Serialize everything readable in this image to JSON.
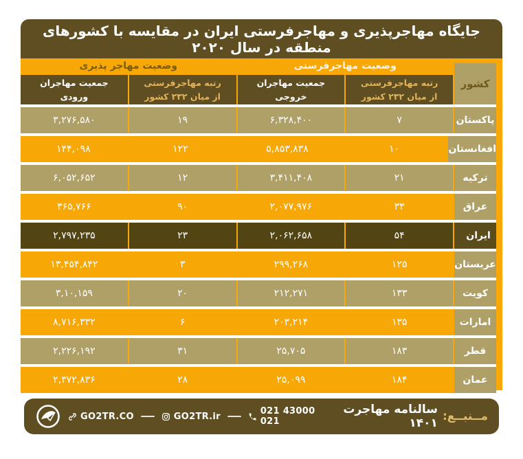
{
  "title": "جایگاه مهاجرپذیری و مهاجرفرستی ایران در مقایسه با کشورهای منطقه در سال ۲۰۲۰",
  "colors": {
    "orange": "#F7A807",
    "tan": "#AFA067",
    "dark_brown": "#5E4E22",
    "iran_row": "#524413",
    "gold_text": "#E3B45B",
    "footer_label_gold": "#DDB96E",
    "white": "#FFFFFF"
  },
  "table": {
    "country_header": "کشور",
    "groups": [
      {
        "label": "وضعیت مهاجرفرستی",
        "style": "light"
      },
      {
        "label": "وضعیت مهاجر پذیری",
        "style": "dark"
      }
    ],
    "columns": [
      {
        "label": "رتبه مهاجرفرستی\nاز میان ۲۳۲ کشور",
        "style": "gold"
      },
      {
        "label": "جمعیت مهاجران\nخروجی",
        "style": "white"
      },
      {
        "label": "رتبه مهاجرفرستی\nاز میان ۲۳۲ کشور",
        "style": "gold"
      },
      {
        "label": "جمعیت مهاجران\nورودی",
        "style": "white"
      }
    ],
    "rows": [
      {
        "country": "پاکستان",
        "emigration_rank": "۷",
        "emigrants": "۶,۳۲۸,۴۰۰",
        "immigration_rank": "۱۹",
        "immigrants": "۳,۲۷۶,۵۸۰",
        "style": "tan"
      },
      {
        "country": "افغانستان",
        "emigration_rank": "۱۰",
        "emigrants": "۵,۸۵۳,۸۳۸",
        "immigration_rank": "۱۲۲",
        "immigrants": "۱۴۴,۰۹۸",
        "style": "orange"
      },
      {
        "country": "ترکیه",
        "emigration_rank": "۲۱",
        "emigrants": "۳,۴۱۱,۴۰۸",
        "immigration_rank": "۱۲",
        "immigrants": "۶,۰۵۲,۶۵۲",
        "style": "tan"
      },
      {
        "country": "عراق",
        "emigration_rank": "۳۳",
        "emigrants": "۲,۰۷۷,۹۷۶",
        "immigration_rank": "۹۰",
        "immigrants": "۳۶۵,۷۶۶",
        "style": "orange"
      },
      {
        "country": "ایران",
        "emigration_rank": "۵۴",
        "emigrants": "۲,۰۶۲,۶۵۸",
        "immigration_rank": "۲۳",
        "immigrants": "۲,۷۹۷,۲۳۵",
        "style": "dark"
      },
      {
        "country": "عربستان",
        "emigration_rank": "۱۲۵",
        "emigrants": "۲۹۹,۲۶۸",
        "immigration_rank": "۳",
        "immigrants": "۱۳,۴۵۴,۸۴۲",
        "style": "orange"
      },
      {
        "country": "کویت",
        "emigration_rank": "۱۳۳",
        "emigrants": "۲۱۲,۲۷۱",
        "immigration_rank": "۲۰",
        "immigrants": "۳,۱۰,۱۵۹",
        "style": "tan"
      },
      {
        "country": "امارات",
        "emigration_rank": "۱۳۵",
        "emigrants": "۲۰۳,۲۱۴",
        "immigration_rank": "۶",
        "immigrants": "۸,۷۱۶,۳۳۲",
        "style": "orange"
      },
      {
        "country": "قطر",
        "emigration_rank": "۱۸۳",
        "emigrants": "۲۵,۷۰۵",
        "immigration_rank": "۳۱",
        "immigrants": "۲,۲۲۶,۱۹۲",
        "style": "tan"
      },
      {
        "country": "عمان",
        "emigration_rank": "۱۸۴",
        "emigrants": "۲۵,۰۹۹",
        "immigration_rank": "۲۸",
        "immigrants": "۲,۳۷۲,۸۳۶",
        "style": "orange"
      }
    ]
  },
  "footer": {
    "source_label": "مــنبــع:",
    "source_value": "سالنامه مهاجرت ۱۴۰۱",
    "phone": "021 43000 021",
    "instagram": "GO2TR.ir",
    "website": "GO2TR.CO",
    "icons": {
      "logo": "go2tr-logo",
      "phone": "phone-icon",
      "instagram": "instagram-icon",
      "website": "link-icon"
    }
  },
  "chart_data": {
    "type": "table",
    "title": "جایگاه مهاجرپذیری و مهاجرفرستی ایران در مقایسه با کشورهای منطقه در سال ۲۰۲۰",
    "columns": [
      "کشور",
      "رتبه مهاجرفرستی از میان ۲۳۲ کشور",
      "جمعیت مهاجران خروجی",
      "رتبه مهاجرفرستی از میان ۲۳۲ کشور",
      "جمعیت مهاجران ورودی"
    ],
    "rows": [
      [
        "پاکستان",
        7,
        6328400,
        19,
        3276580
      ],
      [
        "افغانستان",
        10,
        5853838,
        122,
        144098
      ],
      [
        "ترکیه",
        21,
        3411408,
        12,
        6052652
      ],
      [
        "عراق",
        33,
        2077976,
        90,
        365766
      ],
      [
        "ایران",
        54,
        2062658,
        23,
        2797235
      ],
      [
        "عربستان",
        125,
        299268,
        3,
        13454842
      ],
      [
        "کویت",
        133,
        212271,
        20,
        310159
      ],
      [
        "امارات",
        135,
        203214,
        6,
        8716332
      ],
      [
        "قطر",
        183,
        25705,
        31,
        2226192
      ],
      [
        "عمان",
        184,
        25099,
        28,
        2372836
      ]
    ],
    "highlighted_row": "ایران",
    "source": "سالنامه مهاجرت ۱۴۰۱"
  }
}
